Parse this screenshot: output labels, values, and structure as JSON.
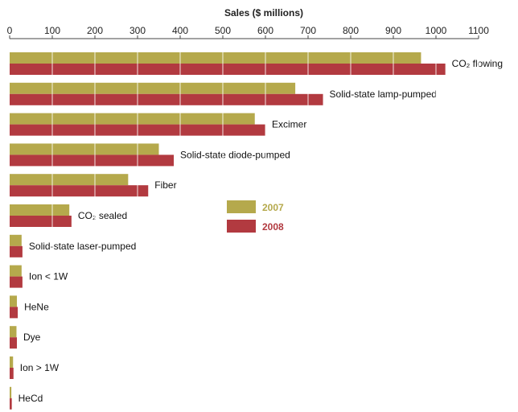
{
  "chart_data": {
    "type": "bar",
    "orientation": "horizontal",
    "title": "Sales ($ millions)",
    "xlim": [
      0,
      1100
    ],
    "xticks": [
      0,
      100,
      200,
      300,
      400,
      500,
      600,
      700,
      800,
      900,
      1000,
      1100
    ],
    "grid": true,
    "legend_position": "center-right",
    "categories": [
      "CO₂ flowing",
      "Solid-state lamp-pumped",
      "Excimer",
      "Solid-state diode-pumped",
      "Fiber",
      "CO₂ sealed",
      "Solid-state laser-pumped",
      "Ion < 1W",
      "HeNe",
      "Dye",
      "Ion > 1W",
      "HeCd"
    ],
    "series": [
      {
        "name": "2007",
        "color": "#b5a94c",
        "values": [
          965,
          670,
          575,
          350,
          278,
          140,
          28,
          28,
          17,
          16,
          8,
          4
        ]
      },
      {
        "name": "2008",
        "color": "#b23a40",
        "values": [
          1022,
          735,
          600,
          385,
          325,
          145,
          30,
          30,
          19,
          17,
          9,
          5
        ]
      }
    ]
  }
}
